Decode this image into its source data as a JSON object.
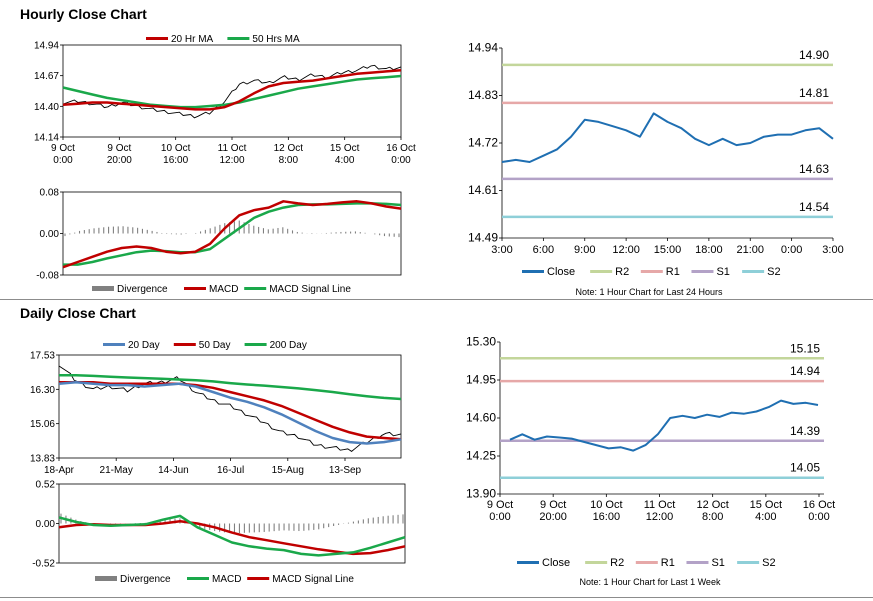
{
  "titles": {
    "hourly": "Hourly Close Chart",
    "daily": "Daily Close Chart"
  },
  "colors": {
    "ma_short": "#c00000",
    "ma_long": "#1aa84a",
    "ma_mid": "#c00000",
    "ma_20day": "#4f81bd",
    "price": "#000000",
    "close_line": "#1f6fb2",
    "r2": "#c3d69b",
    "r1": "#e6a8a8",
    "s1": "#b3a2c7",
    "s2": "#8ecfd8",
    "divergence": "#808080"
  },
  "chart_data": [
    {
      "id": "hourly-price",
      "type": "line",
      "legend": [
        "20 Hr MA",
        "50 Hrs MA"
      ],
      "y_ticks": [
        "14.94",
        "14.67",
        "14.40",
        "14.14"
      ],
      "ylim": [
        14.14,
        14.94
      ],
      "x_ticks": [
        [
          "9 Oct",
          "0:00"
        ],
        [
          "9 Oct",
          "20:00"
        ],
        [
          "10 Oct",
          "16:00"
        ],
        [
          "11 Oct",
          "12:00"
        ],
        [
          "12 Oct",
          "8:00"
        ],
        [
          "15 Oct",
          "4:00"
        ],
        [
          "16 Oct",
          "0:00"
        ]
      ],
      "series": [
        {
          "name": "20 Hr MA",
          "values": [
            14.42,
            14.43,
            14.44,
            14.44,
            14.43,
            14.42,
            14.41,
            14.4,
            14.39,
            14.38,
            14.38,
            14.4,
            14.45,
            14.52,
            14.58,
            14.61,
            14.62,
            14.63,
            14.65,
            14.67,
            14.69,
            14.7,
            14.71,
            14.72
          ]
        },
        {
          "name": "50 Hrs MA",
          "values": [
            14.57,
            14.54,
            14.51,
            14.48,
            14.46,
            14.44,
            14.42,
            14.41,
            14.4,
            14.4,
            14.41,
            14.42,
            14.44,
            14.47,
            14.5,
            14.53,
            14.56,
            14.58,
            14.6,
            14.62,
            14.64,
            14.65,
            14.66,
            14.67
          ]
        },
        {
          "name": "Close",
          "values": [
            14.44,
            14.45,
            14.43,
            14.4,
            14.44,
            14.41,
            14.38,
            14.36,
            14.34,
            14.32,
            14.35,
            14.45,
            14.6,
            14.63,
            14.61,
            14.66,
            14.64,
            14.68,
            14.66,
            14.7,
            14.72,
            14.76,
            14.73,
            14.74
          ]
        }
      ]
    },
    {
      "id": "hourly-macd",
      "type": "line",
      "legend": [
        "Divergence",
        "MACD",
        "MACD Signal Line"
      ],
      "y_ticks": [
        "0.08",
        "0.00",
        "-0.08"
      ],
      "ylim": [
        -0.08,
        0.08
      ],
      "series": [
        {
          "name": "MACD",
          "values": [
            -0.065,
            -0.055,
            -0.045,
            -0.035,
            -0.028,
            -0.025,
            -0.028,
            -0.035,
            -0.038,
            -0.035,
            -0.02,
            0.01,
            0.035,
            0.045,
            0.05,
            0.062,
            0.058,
            0.055,
            0.057,
            0.06,
            0.062,
            0.058,
            0.052,
            0.048
          ]
        },
        {
          "name": "MACD Signal Line",
          "values": [
            -0.06,
            -0.06,
            -0.055,
            -0.048,
            -0.042,
            -0.036,
            -0.033,
            -0.034,
            -0.036,
            -0.036,
            -0.03,
            -0.01,
            0.01,
            0.03,
            0.042,
            0.05,
            0.055,
            0.056,
            0.056,
            0.057,
            0.058,
            0.058,
            0.057,
            0.055
          ]
        },
        {
          "name": "Divergence",
          "values": [
            -0.005,
            0.005,
            0.01,
            0.013,
            0.014,
            0.011,
            0.005,
            -0.001,
            -0.002,
            0.001,
            0.01,
            0.02,
            0.025,
            0.015,
            0.008,
            0.012,
            0.003,
            -0.001,
            0.001,
            0.003,
            0.004,
            0.0,
            -0.005,
            -0.007
          ]
        }
      ]
    },
    {
      "id": "hourly-24h",
      "type": "line",
      "legend": [
        "Close",
        "R2",
        "R1",
        "S1",
        "S2"
      ],
      "y_ticks": [
        "14.94",
        "14.83",
        "14.72",
        "14.61",
        "14.49"
      ],
      "ylim": [
        14.49,
        14.94
      ],
      "x_ticks": [
        "3:00",
        "6:00",
        "9:00",
        "12:00",
        "15:00",
        "18:00",
        "21:00",
        "0:00",
        "3:00"
      ],
      "levels": [
        {
          "name": "R2",
          "value": 14.9,
          "label": "14.90"
        },
        {
          "name": "R1",
          "value": 14.81,
          "label": "14.81"
        },
        {
          "name": "S1",
          "value": 14.63,
          "label": "14.63"
        },
        {
          "name": "S2",
          "value": 14.54,
          "label": "14.54"
        }
      ],
      "series": [
        {
          "name": "Close",
          "values": [
            14.67,
            14.675,
            14.67,
            14.685,
            14.7,
            14.73,
            14.77,
            14.765,
            14.755,
            14.745,
            14.73,
            14.785,
            14.765,
            14.75,
            14.725,
            14.71,
            14.725,
            14.71,
            14.715,
            14.73,
            14.735,
            14.735,
            14.745,
            14.75,
            14.725
          ]
        }
      ],
      "note": "Note: 1 Hour Chart for Last 24 Hours"
    },
    {
      "id": "daily-price",
      "type": "line",
      "legend": [
        "20 Day",
        "50 Day",
        "200 Day"
      ],
      "y_ticks": [
        "17.53",
        "16.30",
        "15.06",
        "13.83"
      ],
      "ylim": [
        13.83,
        17.53
      ],
      "x_ticks": [
        "18-Apr",
        "21-May",
        "14-Jun",
        "16-Jul",
        "15-Aug",
        "13-Sep"
      ],
      "series": [
        {
          "name": "20 Day",
          "values": [
            16.5,
            16.55,
            16.5,
            16.45,
            16.45,
            16.4,
            16.45,
            16.5,
            16.4,
            16.2,
            16.0,
            15.85,
            15.65,
            15.4,
            15.1,
            14.8,
            14.55,
            14.4,
            14.35,
            14.4,
            14.5
          ]
        },
        {
          "name": "50 Day",
          "values": [
            16.55,
            16.55,
            16.55,
            16.5,
            16.5,
            16.5,
            16.5,
            16.5,
            16.45,
            16.35,
            16.2,
            16.05,
            15.9,
            15.7,
            15.45,
            15.2,
            14.95,
            14.75,
            14.6,
            14.55,
            14.5
          ]
        },
        {
          "name": "200 Day",
          "values": [
            16.8,
            16.8,
            16.78,
            16.75,
            16.72,
            16.7,
            16.68,
            16.65,
            16.62,
            16.58,
            16.52,
            16.47,
            16.43,
            16.38,
            16.33,
            16.27,
            16.2,
            16.12,
            16.05,
            15.99,
            15.95
          ]
        },
        {
          "name": "Close",
          "values": [
            17.2,
            16.6,
            16.3,
            16.4,
            16.25,
            16.5,
            16.55,
            16.7,
            16.2,
            15.9,
            15.7,
            15.4,
            15.1,
            14.75,
            14.6,
            14.3,
            14.2,
            14.1,
            14.4,
            14.7,
            14.65
          ]
        }
      ]
    },
    {
      "id": "daily-macd",
      "type": "line",
      "legend": [
        "Divergence",
        "MACD",
        "MACD Signal Line"
      ],
      "y_ticks": [
        "0.52",
        "0.00",
        "-0.52"
      ],
      "ylim": [
        -0.52,
        0.52
      ],
      "series": [
        {
          "name": "MACD",
          "values": [
            0.08,
            0.02,
            -0.02,
            -0.03,
            -0.02,
            -0.01,
            0.05,
            0.1,
            -0.05,
            -0.15,
            -0.25,
            -0.3,
            -0.33,
            -0.35,
            -0.4,
            -0.42,
            -0.4,
            -0.38,
            -0.32,
            -0.25,
            -0.18
          ]
        },
        {
          "name": "MACD Signal Line",
          "values": [
            -0.05,
            -0.02,
            -0.01,
            -0.02,
            -0.02,
            -0.02,
            0.0,
            0.03,
            0.0,
            -0.05,
            -0.12,
            -0.18,
            -0.22,
            -0.26,
            -0.3,
            -0.34,
            -0.37,
            -0.4,
            -0.39,
            -0.35,
            -0.3
          ]
        },
        {
          "name": "Divergence",
          "values": [
            0.13,
            0.04,
            -0.01,
            -0.01,
            0.0,
            0.01,
            0.05,
            0.07,
            -0.05,
            -0.1,
            -0.13,
            -0.12,
            -0.11,
            -0.09,
            -0.1,
            -0.08,
            -0.03,
            0.02,
            0.07,
            0.1,
            0.12
          ]
        }
      ]
    },
    {
      "id": "daily-week",
      "type": "line",
      "legend": [
        "Close",
        "R2",
        "R1",
        "S1",
        "S2"
      ],
      "y_ticks": [
        "15.30",
        "14.95",
        "14.60",
        "14.25",
        "13.90"
      ],
      "ylim": [
        13.9,
        15.3
      ],
      "x_ticks": [
        [
          "9 Oct",
          "0:00"
        ],
        [
          "9 Oct",
          "20:00"
        ],
        [
          "10 Oct",
          "16:00"
        ],
        [
          "11 Oct",
          "12:00"
        ],
        [
          "12 Oct",
          "8:00"
        ],
        [
          "15 Oct",
          "4:00"
        ],
        [
          "16 Oct",
          "0:00"
        ]
      ],
      "levels": [
        {
          "name": "R2",
          "value": 15.15,
          "label": "15.15"
        },
        {
          "name": "R1",
          "value": 14.94,
          "label": "14.94"
        },
        {
          "name": "S1",
          "value": 14.39,
          "label": "14.39"
        },
        {
          "name": "S2",
          "value": 14.05,
          "label": "14.05"
        }
      ],
      "series": [
        {
          "name": "Close",
          "values": [
            14.4,
            14.45,
            14.4,
            14.43,
            14.42,
            14.41,
            14.38,
            14.35,
            14.32,
            14.33,
            14.3,
            14.35,
            14.45,
            14.6,
            14.62,
            14.6,
            14.63,
            14.61,
            14.65,
            14.64,
            14.66,
            14.7,
            14.76,
            14.73,
            14.74,
            14.72
          ]
        }
      ],
      "note": "Note: 1 Hour Chart for Last 1 Week"
    }
  ]
}
